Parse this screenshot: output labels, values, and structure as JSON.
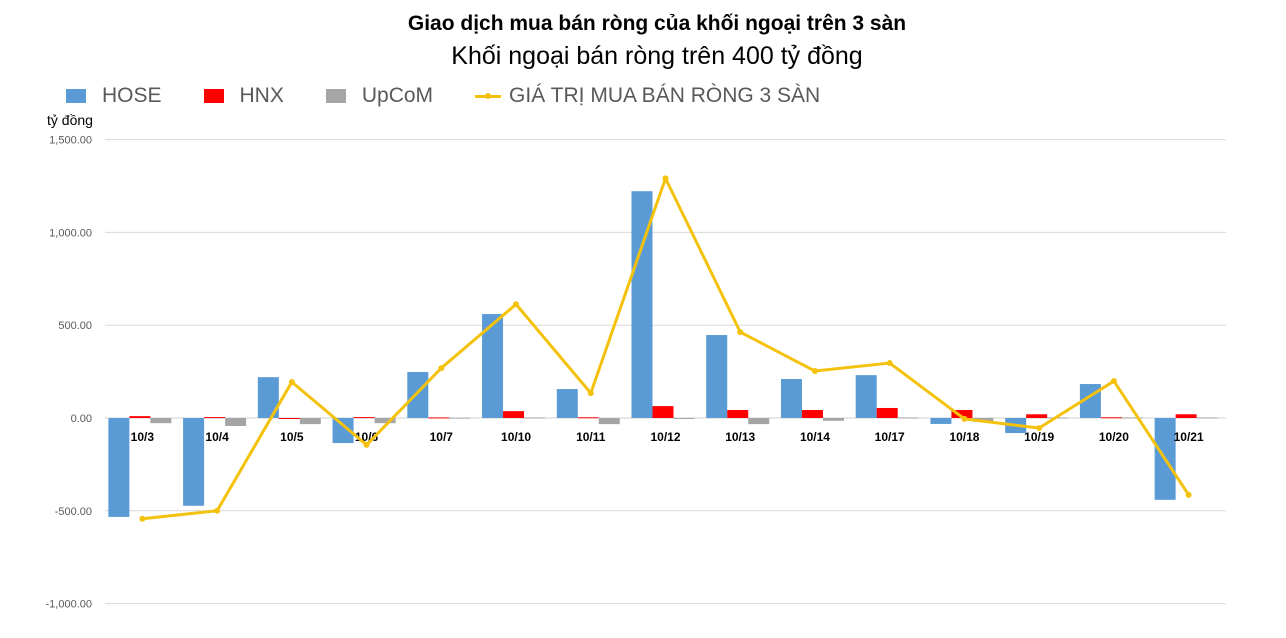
{
  "chart_data": {
    "type": "bar+line",
    "title": "Giao dịch mua bán ròng của khối ngoại trên 3 sàn",
    "subtitle": "Khối ngoại bán ròng trên 400 tỷ đồng",
    "ylabel": "tỷ đồng",
    "ylim": [
      -1000,
      1500
    ],
    "yticks": [
      "1,500.00",
      "1,000.00",
      "500.00",
      "0.00",
      "-500.00",
      "-1,000.00"
    ],
    "ytick_values": [
      1500,
      1000,
      500,
      0,
      -500,
      -1000
    ],
    "grid": true,
    "legend_position": "top-left",
    "categories": [
      "10/3",
      "10/4",
      "10/5",
      "10/6",
      "10/7",
      "10/10",
      "10/11",
      "10/12",
      "10/13",
      "10/14",
      "10/17",
      "10/18",
      "10/19",
      "10/20",
      "10/21"
    ],
    "series": [
      {
        "name": "HOSE",
        "type": "bar",
        "color": "#5b9bd5",
        "values": [
          -533,
          -473,
          220,
          -135,
          248,
          560,
          156,
          1222,
          447,
          210,
          231,
          -32,
          -81,
          183,
          -441
        ]
      },
      {
        "name": "HNX",
        "type": "bar",
        "color": "#ff0000",
        "values": [
          10,
          5,
          -3,
          5,
          3,
          37,
          4,
          64,
          43,
          43,
          54,
          43,
          20,
          4,
          20
        ]
      },
      {
        "name": "UpCoM",
        "type": "bar",
        "color": "#a5a5a5",
        "values": [
          -28,
          -43,
          -33,
          -28,
          2,
          3,
          -33,
          -2,
          -33,
          -15,
          3,
          -20,
          3,
          3,
          3
        ]
      },
      {
        "name": "GIÁ TRỊ MUA BÁN RÒNG 3 SÀN",
        "type": "line",
        "color": "#f4c20d",
        "values": [
          -543,
          -500,
          194,
          -145,
          269,
          613,
          134,
          1291,
          463,
          253,
          296,
          -5,
          -54,
          199,
          -414
        ]
      }
    ]
  }
}
